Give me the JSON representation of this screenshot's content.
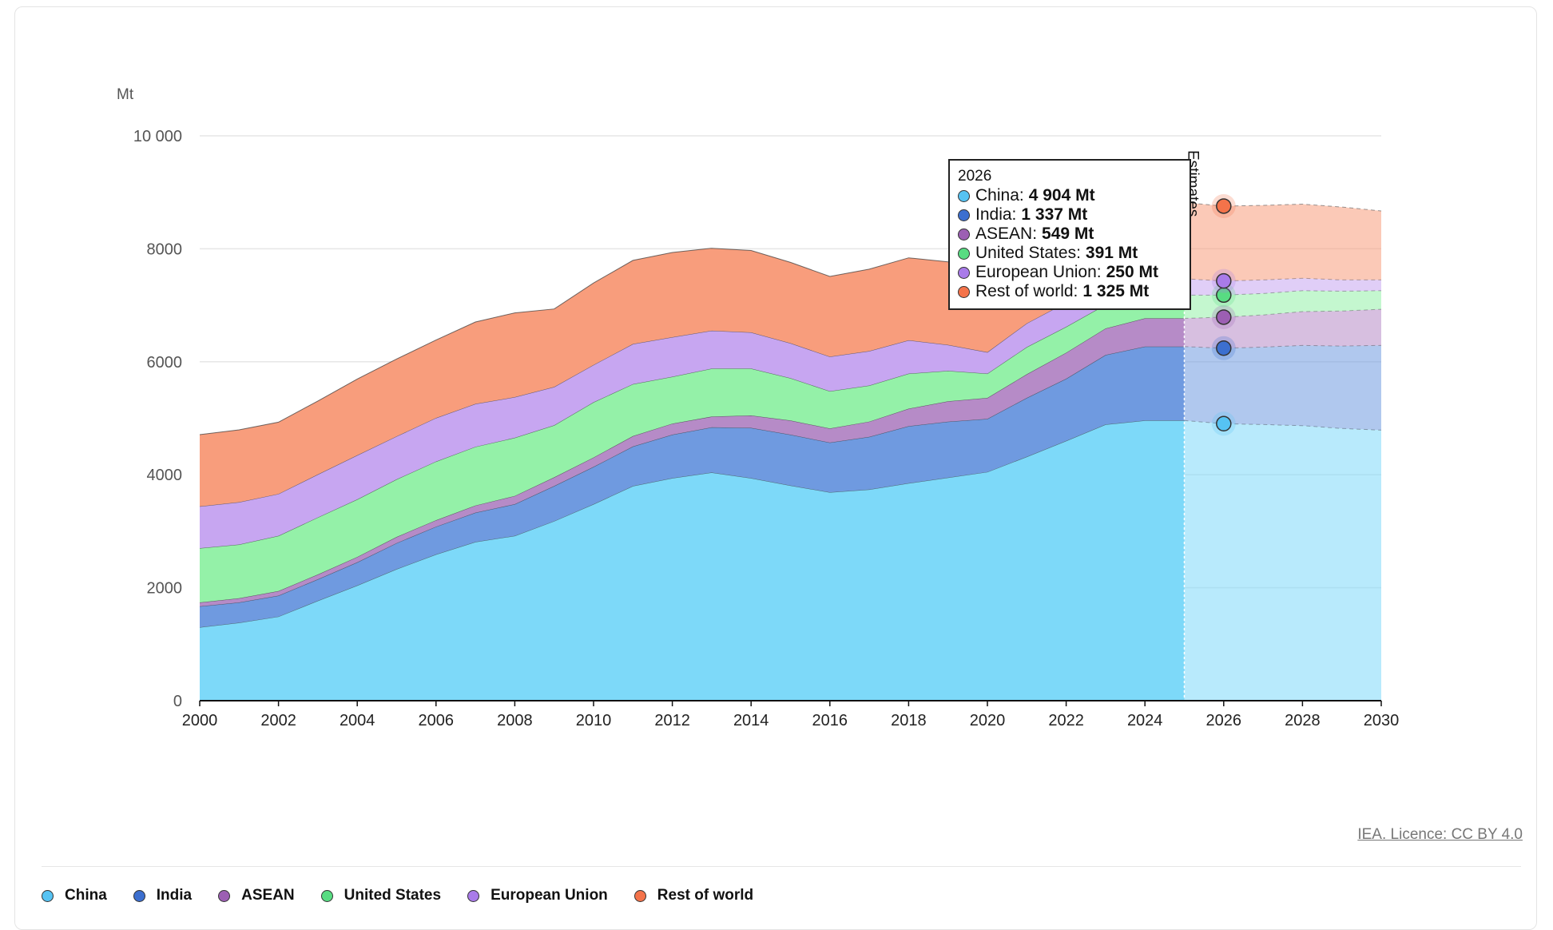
{
  "chart_data": {
    "type": "area",
    "stacked": true,
    "unit_label": "Mt",
    "ylim": [
      0,
      10000
    ],
    "yticks": [
      0,
      2000,
      4000,
      6000,
      8000,
      10000
    ],
    "ytick_labels": [
      "0",
      "2000",
      "4000",
      "6000",
      "8000",
      "10 000"
    ],
    "xlim": [
      2000,
      2030
    ],
    "xticks": [
      2000,
      2002,
      2004,
      2006,
      2008,
      2010,
      2012,
      2014,
      2016,
      2018,
      2020,
      2022,
      2024,
      2026,
      2028,
      2030
    ],
    "x": [
      2000,
      2001,
      2002,
      2003,
      2004,
      2005,
      2006,
      2007,
      2008,
      2009,
      2010,
      2011,
      2012,
      2013,
      2014,
      2015,
      2016,
      2017,
      2018,
      2019,
      2020,
      2021,
      2022,
      2023,
      2024,
      2025
    ],
    "x_forecast": [
      2025,
      2026,
      2027,
      2028,
      2029,
      2030
    ],
    "estimates_start": 2025,
    "estimates_label": "Estimates",
    "series": [
      {
        "name": "China",
        "color": "#7dd9f9",
        "values": [
          1300,
          1380,
          1490,
          1770,
          2040,
          2330,
          2590,
          2810,
          2920,
          3180,
          3480,
          3800,
          3940,
          4040,
          3940,
          3810,
          3690,
          3740,
          3850,
          3950,
          4050,
          4320,
          4600,
          4890,
          4960,
          4960
        ],
        "forecast": [
          4960,
          4904,
          4890,
          4870,
          4820,
          4790
        ]
      },
      {
        "name": "India",
        "color": "#6f9ae0",
        "values": [
          370,
          360,
          370,
          380,
          410,
          460,
          490,
          520,
          560,
          620,
          660,
          700,
          770,
          800,
          890,
          900,
          880,
          930,
          1010,
          990,
          940,
          1040,
          1100,
          1230,
          1310,
          1310
        ],
        "forecast": [
          1310,
          1337,
          1370,
          1420,
          1460,
          1500
        ]
      },
      {
        "name": "ASEAN",
        "color": "#b68bc7",
        "values": [
          70,
          75,
          80,
          85,
          95,
          110,
          115,
          125,
          145,
          155,
          165,
          185,
          195,
          190,
          220,
          250,
          250,
          270,
          310,
          360,
          370,
          420,
          460,
          470,
          500,
          500
        ],
        "forecast": [
          500,
          549,
          570,
          600,
          620,
          640
        ]
      },
      {
        "name": "United States",
        "color": "#94f1a8",
        "values": [
          960,
          950,
          980,
          1010,
          1020,
          1020,
          1040,
          1040,
          1030,
          920,
          980,
          920,
          830,
          850,
          830,
          750,
          660,
          640,
          620,
          540,
          430,
          480,
          460,
          420,
          410,
          410
        ],
        "forecast": [
          410,
          391,
          380,
          370,
          350,
          330
        ]
      },
      {
        "name": "European Union",
        "color": "#c7a6f1",
        "values": [
          740,
          750,
          740,
          760,
          780,
          760,
          770,
          760,
          720,
          680,
          660,
          710,
          700,
          670,
          640,
          620,
          610,
          610,
          590,
          460,
          380,
          420,
          430,
          320,
          290,
          290
        ],
        "forecast": [
          290,
          250,
          240,
          220,
          200,
          190
        ]
      },
      {
        "name": "Rest of world",
        "color": "#f89d7c",
        "values": [
          1270,
          1280,
          1270,
          1300,
          1350,
          1370,
          1380,
          1450,
          1490,
          1380,
          1450,
          1480,
          1500,
          1460,
          1450,
          1430,
          1420,
          1450,
          1460,
          1470,
          1390,
          1450,
          1400,
          1350,
          1350,
          1350
        ],
        "forecast": [
          1350,
          1325,
          1320,
          1310,
          1290,
          1220
        ]
      }
    ],
    "tooltip": {
      "year": "2026",
      "rows": [
        {
          "name": "China",
          "value": "4 904 Mt",
          "color": "#56c3f3"
        },
        {
          "name": "India",
          "value": "1 337 Mt",
          "color": "#3c6fcf"
        },
        {
          "name": "ASEAN",
          "value": "549 Mt",
          "color": "#9c5fb3"
        },
        {
          "name": "United States",
          "value": "391 Mt",
          "color": "#58dc82"
        },
        {
          "name": "European Union",
          "value": "250 Mt",
          "color": "#a97be9"
        },
        {
          "name": "Rest of world",
          "value": "1 325 Mt",
          "color": "#f4734a"
        }
      ]
    }
  },
  "licence_text": "IEA. Licence: CC BY 4.0",
  "legend": [
    {
      "label": "China",
      "color": "#56c3f3"
    },
    {
      "label": "India",
      "color": "#3c6fcf"
    },
    {
      "label": "ASEAN",
      "color": "#9c5fb3"
    },
    {
      "label": "United States",
      "color": "#58dc82"
    },
    {
      "label": "European Union",
      "color": "#a97be9"
    },
    {
      "label": "Rest of world",
      "color": "#f4734a"
    }
  ]
}
